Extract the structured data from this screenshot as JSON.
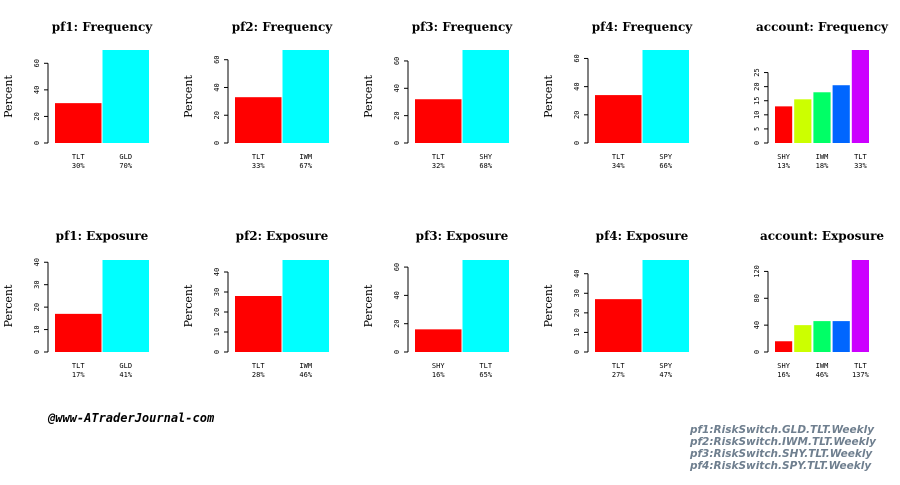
{
  "colors": {
    "red": "#ff0000",
    "cyan": "#00ffff",
    "yellowgreen": "#ccff00",
    "green": "#00ff66",
    "blue": "#0066ff",
    "magenta": "#cc00ff",
    "legend_text": "#6f7f8f"
  },
  "chart_data": [
    {
      "type": "bar",
      "title": "pf1: Frequency",
      "ylabel": "Percent",
      "ylim": [
        0,
        70
      ],
      "yticks": [
        0,
        20,
        40,
        60
      ],
      "categories": [
        "TLT",
        "GLD"
      ],
      "percent_labels": [
        "30%",
        "70%"
      ],
      "values": [
        30,
        70
      ],
      "colors": [
        "red",
        "cyan"
      ]
    },
    {
      "type": "bar",
      "title": "pf2: Frequency",
      "ylabel": "Percent",
      "ylim": [
        0,
        67
      ],
      "yticks": [
        0,
        20,
        40,
        60
      ],
      "categories": [
        "TLT",
        "IWM"
      ],
      "percent_labels": [
        "33%",
        "67%"
      ],
      "values": [
        33,
        67
      ],
      "colors": [
        "red",
        "cyan"
      ]
    },
    {
      "type": "bar",
      "title": "pf3: Frequency",
      "ylabel": "Percent",
      "ylim": [
        0,
        68
      ],
      "yticks": [
        0,
        20,
        40,
        60
      ],
      "categories": [
        "TLT",
        "SHY"
      ],
      "percent_labels": [
        "32%",
        "68%"
      ],
      "values": [
        32,
        68
      ],
      "colors": [
        "red",
        "cyan"
      ]
    },
    {
      "type": "bar",
      "title": "pf4: Frequency",
      "ylabel": "Percent",
      "ylim": [
        0,
        66
      ],
      "yticks": [
        0,
        20,
        40,
        60
      ],
      "categories": [
        "TLT",
        "SPY"
      ],
      "percent_labels": [
        "34%",
        "66%"
      ],
      "values": [
        34,
        66
      ],
      "colors": [
        "red",
        "cyan"
      ]
    },
    {
      "type": "bar",
      "title": "account: Frequency",
      "ylabel": "",
      "ylim": [
        0,
        33
      ],
      "yticks": [
        0,
        5,
        10,
        15,
        20,
        25
      ],
      "categories": [
        "SHY",
        "",
        "IWM",
        "",
        "TLT"
      ],
      "percent_labels": [
        "13%",
        "",
        "18%",
        "",
        "33%"
      ],
      "values": [
        13,
        15.5,
        18,
        20.5,
        33
      ],
      "colors": [
        "red",
        "yellowgreen",
        "green",
        "blue",
        "magenta"
      ]
    },
    {
      "type": "bar",
      "title": "pf1: Exposure",
      "ylabel": "Percent",
      "ylim": [
        0,
        41
      ],
      "yticks": [
        0,
        10,
        20,
        30,
        40
      ],
      "categories": [
        "TLT",
        "GLD"
      ],
      "percent_labels": [
        "17%",
        "41%"
      ],
      "values": [
        17,
        41
      ],
      "colors": [
        "red",
        "cyan"
      ]
    },
    {
      "type": "bar",
      "title": "pf2: Exposure",
      "ylabel": "Percent",
      "ylim": [
        0,
        46
      ],
      "yticks": [
        0,
        10,
        20,
        30,
        40
      ],
      "categories": [
        "TLT",
        "IWM"
      ],
      "percent_labels": [
        "28%",
        "46%"
      ],
      "values": [
        28,
        46
      ],
      "colors": [
        "red",
        "cyan"
      ]
    },
    {
      "type": "bar",
      "title": "pf3: Exposure",
      "ylabel": "Percent",
      "ylim": [
        0,
        65
      ],
      "yticks": [
        0,
        20,
        40,
        60
      ],
      "categories": [
        "SHY",
        "TLT"
      ],
      "percent_labels": [
        "16%",
        "65%"
      ],
      "values": [
        16,
        65
      ],
      "colors": [
        "red",
        "cyan"
      ]
    },
    {
      "type": "bar",
      "title": "pf4: Exposure",
      "ylabel": "Percent",
      "ylim": [
        0,
        47
      ],
      "yticks": [
        0,
        10,
        20,
        30,
        40
      ],
      "categories": [
        "TLT",
        "SPY"
      ],
      "percent_labels": [
        "27%",
        "47%"
      ],
      "values": [
        27,
        47
      ],
      "colors": [
        "red",
        "cyan"
      ]
    },
    {
      "type": "bar",
      "title": "account: Exposure",
      "ylabel": "",
      "ylim": [
        0,
        137
      ],
      "yticks": [
        0,
        40,
        80,
        120
      ],
      "categories": [
        "SHY",
        "",
        "IWM",
        "",
        "TLT"
      ],
      "percent_labels": [
        "16%",
        "",
        "46%",
        "",
        "137%"
      ],
      "values": [
        16,
        40,
        46,
        46,
        137
      ],
      "colors": [
        "red",
        "yellowgreen",
        "green",
        "blue",
        "magenta"
      ]
    }
  ],
  "watermark": "@www-ATraderJournal-com",
  "legend": [
    "pf1:RiskSwitch.GLD.TLT.Weekly",
    "pf2:RiskSwitch.IWM.TLT.Weekly",
    "pf3:RiskSwitch.SHY.TLT.Weekly",
    "pf4:RiskSwitch.SPY.TLT.Weekly"
  ]
}
